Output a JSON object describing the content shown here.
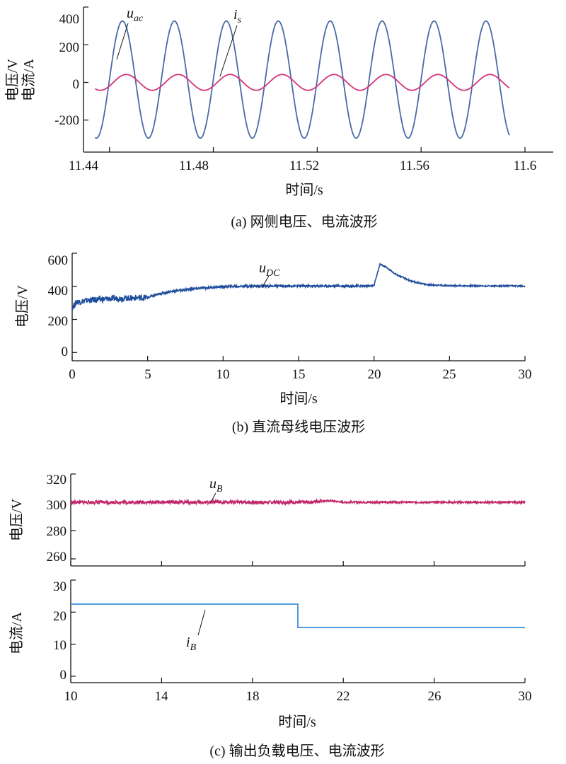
{
  "chart_data": [
    {
      "type": "line",
      "xlabel": "时间/s",
      "ylabel": [
        "电压/V",
        "电流/A"
      ],
      "caption": "(a) 网侧电压、电流波形",
      "xlim": [
        11.43,
        11.6
      ],
      "ylim": [
        -370,
        400
      ],
      "xticks": [
        11.44,
        11.48,
        11.52,
        11.56,
        11.6
      ],
      "yticks": [
        -200,
        0,
        200,
        400
      ],
      "grid": false,
      "series": [
        {
          "name": "u_ac",
          "label_main": "u",
          "label_sub": "ac",
          "kind": "sine",
          "amplitude": 311,
          "offset": 15,
          "frequency": 50,
          "peak_time": 11.445,
          "x_start": 11.4345,
          "x_end": 11.594,
          "color": "#4a6aa5"
        },
        {
          "name": "i_s",
          "label_main": "i",
          "label_sub": "s",
          "kind": "sine",
          "amplitude": 42,
          "offset": 0,
          "frequency": 50,
          "peak_time": 11.4465,
          "x_start": 11.4345,
          "x_end": 11.594,
          "color": "#d6337a"
        }
      ]
    },
    {
      "type": "line",
      "xlabel": "时间/s",
      "ylabel": "电压/V",
      "caption": "(b) 直流母线电压波形",
      "xlim": [
        0,
        30
      ],
      "ylim": [
        -50,
        600
      ],
      "xticks": [
        0,
        5,
        10,
        15,
        20,
        25,
        30
      ],
      "yticks": [
        0,
        200,
        400,
        600
      ],
      "grid": false,
      "series": [
        {
          "name": "u_DC",
          "label_main": "u",
          "label_sub": "DC",
          "color": "#1f4e9c",
          "x": [
            0,
            0.3,
            1,
            2,
            3,
            4,
            5,
            5.5,
            6,
            7,
            8,
            9,
            10,
            12,
            15,
            18,
            20,
            20.1,
            20.4,
            20.8,
            21.5,
            22.5,
            23.5,
            25,
            28,
            30
          ],
          "y": [
            270,
            305,
            315,
            322,
            327,
            330,
            333,
            345,
            360,
            375,
            385,
            392,
            398,
            402,
            402,
            402,
            402,
            440,
            535,
            515,
            470,
            430,
            410,
            404,
            402,
            402
          ]
        }
      ]
    },
    {
      "type": "line",
      "ylabel": "电压/V",
      "xlim": [
        10,
        30
      ],
      "ylim": [
        255,
        320
      ],
      "yticks": [
        260,
        280,
        300,
        320
      ],
      "grid": false,
      "series": [
        {
          "name": "u_B",
          "label_main": "u",
          "label_sub": "B",
          "color": "#c1286b",
          "x": [
            10,
            20.5,
            21,
            21.5,
            22,
            30
          ],
          "y": [
            300,
            300,
            301,
            301,
            300,
            300
          ]
        }
      ]
    },
    {
      "type": "line",
      "xlabel": "时间/s",
      "ylabel": "电流/A",
      "caption": "(c) 输出负载电压、电流波形",
      "xlim": [
        10,
        30
      ],
      "ylim": [
        -2,
        30
      ],
      "xticks": [
        10,
        14,
        18,
        22,
        26,
        30
      ],
      "yticks": [
        0,
        10,
        20,
        30
      ],
      "grid": false,
      "series": [
        {
          "name": "i_B",
          "label_main": "i",
          "label_sub": "B",
          "color": "#3b8ed8",
          "x": [
            10,
            20,
            20,
            30
          ],
          "y": [
            22.5,
            22.5,
            15.2,
            15.2
          ]
        }
      ]
    }
  ]
}
